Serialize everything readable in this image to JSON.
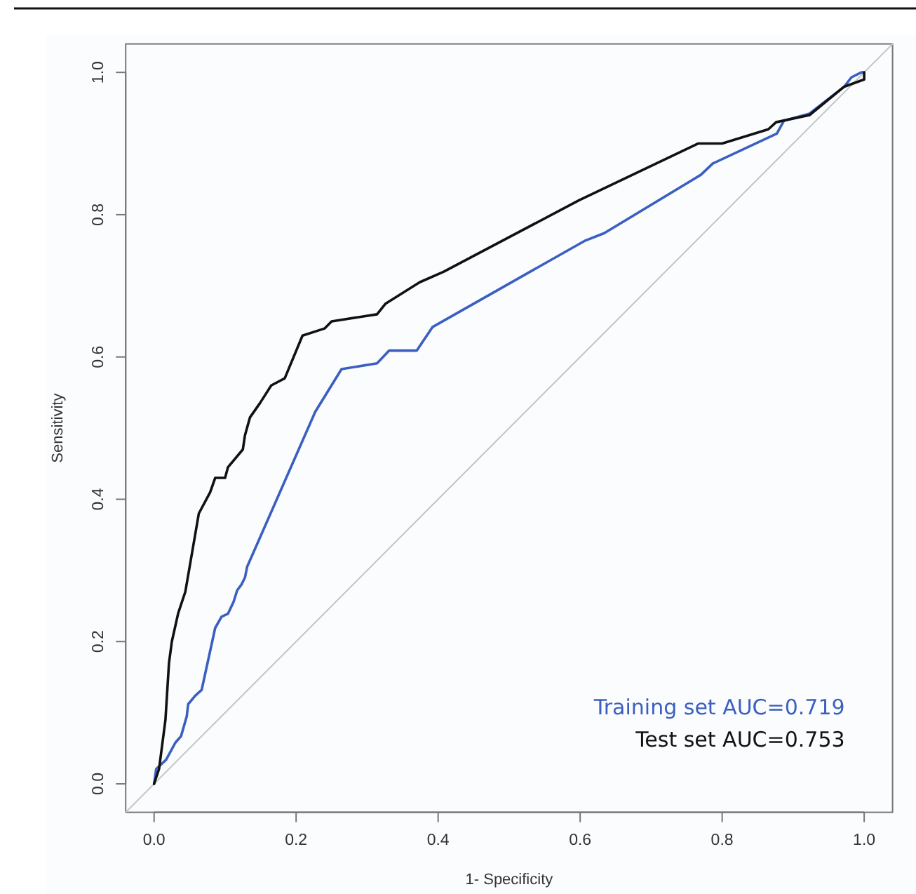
{
  "chart_data": {
    "type": "line",
    "xlabel": "1- Specificity",
    "ylabel": "Sensitivity",
    "xlim": [
      -0.04,
      1.04
    ],
    "ylim": [
      -0.04,
      1.04
    ],
    "xticks": [
      {
        "value": 0,
        "label": "0.0"
      },
      0.2,
      0.4,
      0.6,
      0.8,
      {
        "value": 1,
        "label": "1.0"
      }
    ],
    "yticks": [
      {
        "value": 0,
        "label": "0.0"
      },
      0.2,
      0.4,
      0.6,
      0.8,
      {
        "value": 1,
        "label": "1.0"
      }
    ],
    "grid": false,
    "legend": "bottom right",
    "line_style": "solid",
    "marker": "none",
    "series": [
      {
        "name": "Training set AUC=0.719",
        "color": "#3b5fc0",
        "x": [
          0,
          0.003,
          0.017,
          0.03,
          0.038,
          0.046,
          0.048,
          0.058,
          0.067,
          0.086,
          0.095,
          0.104,
          0.112,
          0.117,
          0.123,
          0.128,
          0.131,
          0.227,
          0.264,
          0.314,
          0.331,
          0.37,
          0.392,
          0.606,
          0.634,
          0.77,
          0.787,
          0.877,
          0.887,
          0.923,
          0.972,
          0.982,
          0.996,
          1
        ],
        "values": [
          0,
          0.021,
          0.034,
          0.058,
          0.067,
          0.095,
          0.112,
          0.124,
          0.132,
          0.219,
          0.235,
          0.239,
          0.256,
          0.272,
          0.28,
          0.29,
          0.305,
          0.523,
          0.583,
          0.591,
          0.609,
          0.609,
          0.642,
          0.763,
          0.774,
          0.856,
          0.872,
          0.914,
          0.932,
          0.942,
          0.98,
          0.993,
          1,
          1
        ]
      },
      {
        "name": "Test set AUC=0.753",
        "color": "#111111",
        "x": [
          0,
          0.007,
          0.016,
          0.021,
          0.025,
          0.034,
          0.044,
          0.063,
          0.079,
          0.086,
          0.1,
          0.104,
          0.125,
          0.128,
          0.135,
          0.149,
          0.165,
          0.184,
          0.209,
          0.24,
          0.25,
          0.314,
          0.326,
          0.374,
          0.408,
          0.598,
          0.766,
          0.8,
          0.865,
          0.876,
          0.923,
          0.972,
          1,
          1
        ],
        "values": [
          0,
          0.021,
          0.09,
          0.17,
          0.2,
          0.24,
          0.27,
          0.38,
          0.41,
          0.43,
          0.43,
          0.445,
          0.47,
          0.49,
          0.515,
          0.535,
          0.56,
          0.57,
          0.63,
          0.64,
          0.65,
          0.66,
          0.675,
          0.705,
          0.72,
          0.82,
          0.9,
          0.9,
          0.92,
          0.93,
          0.94,
          0.98,
          0.99,
          1
        ]
      },
      {
        "color": "#c0c4c8",
        "x": [
          -0.04,
          1.04
        ],
        "values": [
          -0.04,
          1.04
        ]
      }
    ]
  }
}
